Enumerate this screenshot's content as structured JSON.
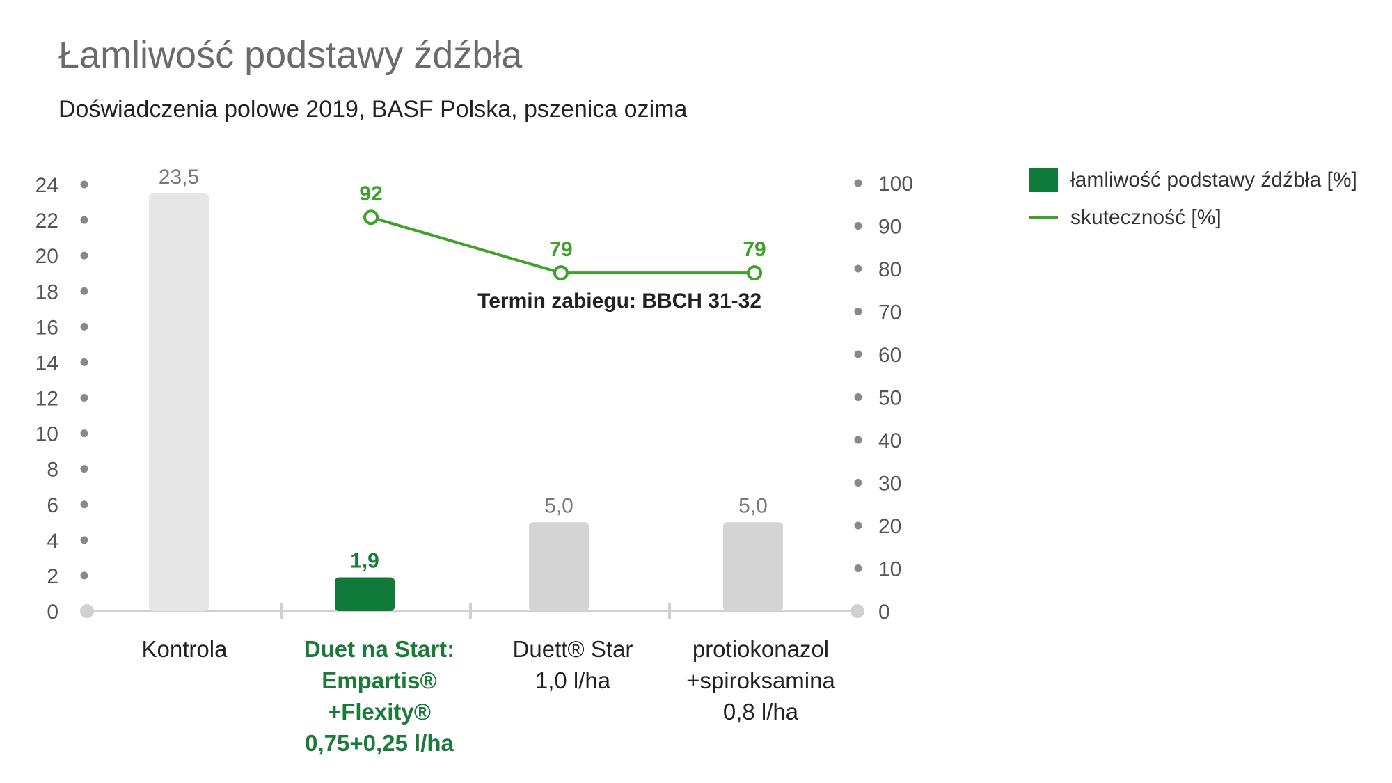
{
  "title": "Łamliwość podstawy źdźbła",
  "subtitle": "Doświadczenia polowe 2019, BASF Polska, pszenica ozima",
  "annotation": "Termin zabiegu: BBCH 31-32",
  "colors": {
    "highlight_bar": "#0f7a3a",
    "bar": "#d4d4d4",
    "control_bar": "#e6e6e6",
    "line": "#3da22a",
    "axis": "#d0d0d0",
    "dot": "#888888"
  },
  "chart_data": {
    "type": "bar",
    "categories": [
      [
        "Kontrola"
      ],
      [
        "Duet na Start:",
        "Empartis®",
        "+Flexity®",
        "0,75+0,25 l/ha"
      ],
      [
        "Duett® Star",
        "1,0 l/ha"
      ],
      [
        "protiokonazol",
        "+spiroksamina",
        "0,8 l/ha"
      ]
    ],
    "highlight_index": 1,
    "series": [
      {
        "name": "łamliwość podstawy źdźbła [%]",
        "type": "bar",
        "axis": "left",
        "values": [
          23.5,
          1.9,
          5.0,
          5.0
        ],
        "labels": [
          "23,5",
          "1,9",
          "5,0",
          "5,0"
        ]
      },
      {
        "name": "skuteczność [%]",
        "type": "line",
        "axis": "right",
        "values": [
          null,
          92,
          79,
          79
        ],
        "labels": [
          "",
          "92",
          "79",
          "79"
        ]
      }
    ],
    "y_left": {
      "min": 0,
      "max": 24,
      "ticks": [
        0,
        2,
        4,
        6,
        8,
        10,
        12,
        14,
        16,
        18,
        20,
        22,
        24
      ]
    },
    "y_right": {
      "min": 0,
      "max": 100,
      "ticks": [
        0,
        10,
        20,
        30,
        40,
        50,
        60,
        70,
        80,
        90,
        100
      ]
    },
    "legend_position": "top-right"
  }
}
